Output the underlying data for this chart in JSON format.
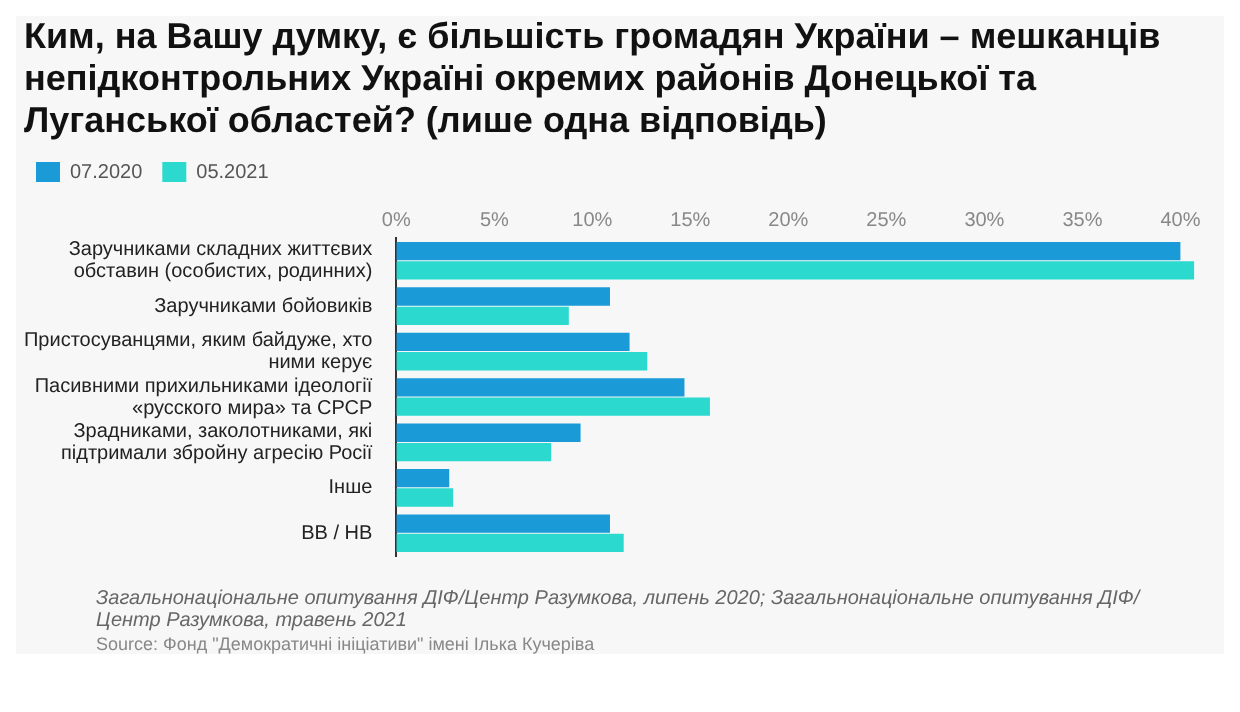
{
  "chart_data": {
    "type": "bar",
    "orientation": "horizontal",
    "title": "Ким, на Вашу думку, є більшість громадян України – мешканців непідконтрольних Україні окремих районів Донецької та Луганської областей? (лише одна відповідь)",
    "categories": [
      "Заручниками складних життєвих обставин (особистих, родинних)",
      "Заручниками бойовиків",
      "Пристосуванцями, яким байдуже, хто ними керує",
      "Пасивними прихильниками ідеології «русского мира» та СРСР",
      "Зрадниками, заколотниками, які підтримали збройну агресію Росії",
      "Інше",
      "ВВ / НВ"
    ],
    "series": [
      {
        "name": "07.2020",
        "color": "#1a9bd7",
        "values": [
          40.0,
          10.9,
          11.9,
          14.7,
          9.4,
          2.7,
          10.9
        ]
      },
      {
        "name": "05.2021",
        "color": "#2bd9cf",
        "values": [
          40.7,
          8.8,
          12.8,
          16.0,
          7.9,
          2.9,
          11.6
        ]
      }
    ],
    "xlim": [
      0,
      41
    ],
    "xticks": [
      {
        "value": 0,
        "label": "0%"
      },
      {
        "value": 5,
        "label": "5%"
      },
      {
        "value": 10,
        "label": "10%"
      },
      {
        "value": 15,
        "label": "15%"
      },
      {
        "value": 20,
        "label": "20%"
      },
      {
        "value": 25,
        "label": "25%"
      },
      {
        "value": 30,
        "label": "30%"
      },
      {
        "value": 35,
        "label": "35%"
      },
      {
        "value": 40,
        "label": "40%"
      }
    ],
    "legend": "top left",
    "grid": false,
    "annotations": [
      "Загальнонаціональне опитування ДІФ/Центр Разумкова, липень 2020; Загальнонаціональне опитування ДІФ/Центр Разумкова, травень 2021",
      "Source: Фонд \"Демократичні ініціативи\" імені Ілька Кучеріва"
    ]
  }
}
